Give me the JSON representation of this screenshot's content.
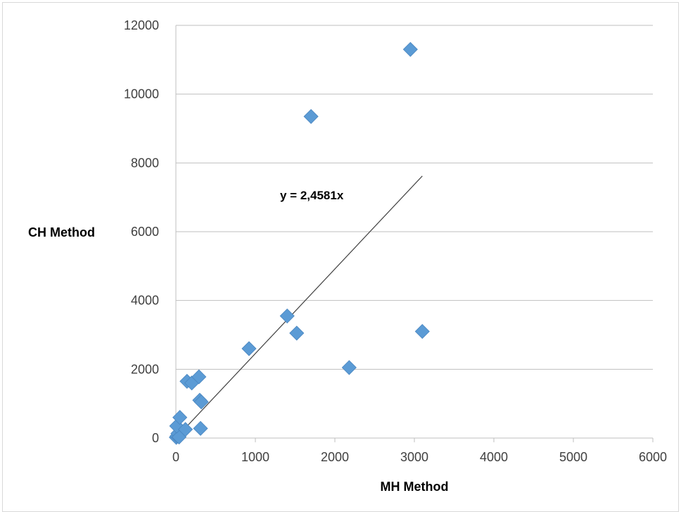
{
  "chart_data": {
    "type": "scatter",
    "title": "",
    "xlabel": "MH Method",
    "ylabel": "CH Method",
    "xlim": [
      0,
      6000
    ],
    "ylim": [
      0,
      12000
    ],
    "x_ticks": [
      0,
      1000,
      2000,
      3000,
      4000,
      5000,
      6000
    ],
    "y_ticks": [
      0,
      2000,
      4000,
      6000,
      8000,
      10000,
      12000
    ],
    "x_tick_labels": [
      "0",
      "1000",
      "2000",
      "3000",
      "4000",
      "5000",
      "6000"
    ],
    "y_tick_labels": [
      "0",
      "2000",
      "4000",
      "6000",
      "8000",
      "10000",
      "12000"
    ],
    "grid": "horizontal",
    "legend": "none",
    "marker_color": "#5b9bd5",
    "series": [
      {
        "points": [
          {
            "x": 5,
            "y": 20
          },
          {
            "x": 15,
            "y": 60
          },
          {
            "x": 25,
            "y": 130
          },
          {
            "x": 40,
            "y": 30
          },
          {
            "x": 10,
            "y": 350
          },
          {
            "x": 50,
            "y": 600
          },
          {
            "x": 120,
            "y": 250
          },
          {
            "x": 140,
            "y": 1650
          },
          {
            "x": 200,
            "y": 1600
          },
          {
            "x": 290,
            "y": 1780
          },
          {
            "x": 300,
            "y": 1100
          },
          {
            "x": 320,
            "y": 1050
          },
          {
            "x": 310,
            "y": 280
          },
          {
            "x": 920,
            "y": 2600
          },
          {
            "x": 1400,
            "y": 3550
          },
          {
            "x": 1520,
            "y": 3050
          },
          {
            "x": 2180,
            "y": 2050
          },
          {
            "x": 3100,
            "y": 3100
          },
          {
            "x": 1700,
            "y": 9350
          },
          {
            "x": 2950,
            "y": 11300
          }
        ]
      }
    ],
    "trendline": {
      "slope": 2.4581,
      "x_range": [
        0,
        3100
      ],
      "color": "#404040",
      "label": "y = 2,4581x"
    }
  }
}
